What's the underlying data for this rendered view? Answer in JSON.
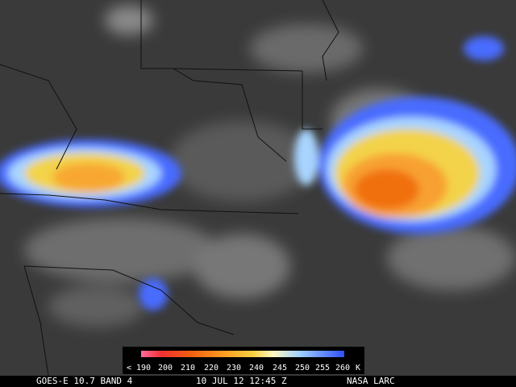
{
  "legend": {
    "ticks": [
      "< 190",
      "200",
      "210",
      "220",
      "230",
      "240",
      "245",
      "250",
      "255",
      "260"
    ],
    "unit": "K"
  },
  "caption": {
    "satellite": "GOES-E 10.7 BAND 4",
    "time": "10 JUL 12 12:45 Z",
    "source": "NASA LARC"
  }
}
